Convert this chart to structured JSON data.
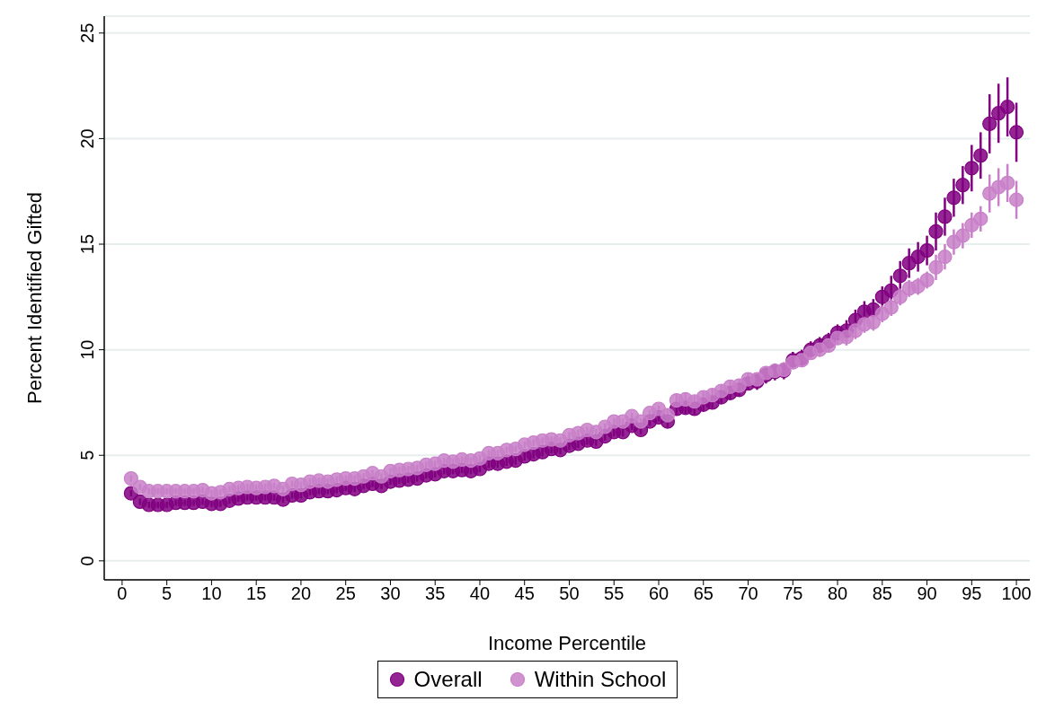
{
  "chart_data": {
    "type": "scatter",
    "xlabel": "Income Percentile",
    "ylabel": "Percent Identified Gifted",
    "x": [
      1,
      2,
      3,
      4,
      5,
      6,
      7,
      8,
      9,
      10,
      11,
      12,
      13,
      14,
      15,
      16,
      17,
      18,
      19,
      20,
      21,
      22,
      23,
      24,
      25,
      26,
      27,
      28,
      29,
      30,
      31,
      32,
      33,
      34,
      35,
      36,
      37,
      38,
      39,
      40,
      41,
      42,
      43,
      44,
      45,
      46,
      47,
      48,
      49,
      50,
      51,
      52,
      53,
      54,
      55,
      56,
      57,
      58,
      59,
      60,
      61,
      62,
      63,
      64,
      65,
      66,
      67,
      68,
      69,
      70,
      71,
      72,
      73,
      74,
      75,
      76,
      77,
      78,
      79,
      80,
      81,
      82,
      83,
      84,
      85,
      86,
      87,
      88,
      89,
      90,
      91,
      92,
      93,
      94,
      95,
      96,
      97,
      98,
      99,
      100
    ],
    "series": [
      {
        "name": "Overall",
        "color": "#800080",
        "values": [
          3.2,
          2.8,
          2.65,
          2.65,
          2.65,
          2.75,
          2.75,
          2.75,
          2.8,
          2.7,
          2.7,
          2.85,
          2.95,
          3.0,
          3.0,
          3.0,
          3.0,
          2.9,
          3.1,
          3.1,
          3.25,
          3.3,
          3.3,
          3.35,
          3.45,
          3.4,
          3.55,
          3.65,
          3.55,
          3.75,
          3.8,
          3.85,
          3.9,
          4.05,
          4.1,
          4.25,
          4.25,
          4.3,
          4.25,
          4.35,
          4.6,
          4.6,
          4.7,
          4.75,
          4.95,
          5.05,
          5.15,
          5.3,
          5.25,
          5.45,
          5.55,
          5.7,
          5.65,
          5.9,
          6.1,
          6.1,
          6.4,
          6.2,
          6.6,
          6.8,
          6.6,
          7.2,
          7.25,
          7.2,
          7.4,
          7.5,
          7.75,
          7.95,
          8.1,
          8.4,
          8.5,
          8.8,
          8.95,
          9.0,
          9.5,
          9.6,
          10.0,
          10.2,
          10.4,
          10.8,
          10.9,
          11.4,
          11.8,
          11.9,
          12.5,
          12.8,
          13.5,
          14.1,
          14.4,
          14.7,
          15.6,
          16.3,
          17.2,
          17.8,
          18.6,
          19.2,
          20.7,
          21.2,
          21.5,
          20.3
        ],
        "errors": [
          0.15,
          0.15,
          0.15,
          0.15,
          0.15,
          0.15,
          0.15,
          0.15,
          0.15,
          0.15,
          0.15,
          0.15,
          0.15,
          0.15,
          0.15,
          0.15,
          0.15,
          0.15,
          0.15,
          0.15,
          0.15,
          0.15,
          0.15,
          0.15,
          0.15,
          0.15,
          0.15,
          0.15,
          0.15,
          0.15,
          0.15,
          0.15,
          0.15,
          0.15,
          0.15,
          0.15,
          0.15,
          0.15,
          0.15,
          0.15,
          0.2,
          0.2,
          0.2,
          0.2,
          0.2,
          0.2,
          0.2,
          0.2,
          0.2,
          0.2,
          0.2,
          0.2,
          0.2,
          0.2,
          0.2,
          0.2,
          0.2,
          0.2,
          0.2,
          0.2,
          0.3,
          0.3,
          0.3,
          0.3,
          0.3,
          0.3,
          0.3,
          0.3,
          0.3,
          0.3,
          0.4,
          0.4,
          0.4,
          0.4,
          0.4,
          0.4,
          0.4,
          0.4,
          0.4,
          0.4,
          0.5,
          0.5,
          0.5,
          0.5,
          0.5,
          0.7,
          0.7,
          0.7,
          0.7,
          0.7,
          0.9,
          0.9,
          0.9,
          0.9,
          1.1,
          1.1,
          1.4,
          1.4,
          1.4,
          1.4
        ]
      },
      {
        "name": "Within School",
        "color": "#c880c8",
        "values": [
          3.9,
          3.5,
          3.3,
          3.3,
          3.3,
          3.3,
          3.3,
          3.3,
          3.35,
          3.2,
          3.25,
          3.4,
          3.45,
          3.5,
          3.45,
          3.5,
          3.55,
          3.4,
          3.65,
          3.6,
          3.75,
          3.8,
          3.75,
          3.85,
          3.9,
          3.9,
          4.0,
          4.15,
          4.0,
          4.25,
          4.3,
          4.35,
          4.4,
          4.55,
          4.6,
          4.75,
          4.7,
          4.8,
          4.75,
          4.85,
          5.1,
          5.1,
          5.25,
          5.3,
          5.5,
          5.6,
          5.7,
          5.75,
          5.7,
          5.95,
          6.05,
          6.2,
          6.1,
          6.35,
          6.6,
          6.6,
          6.85,
          6.6,
          7.0,
          7.2,
          6.9,
          7.6,
          7.65,
          7.55,
          7.75,
          7.85,
          8.05,
          8.25,
          8.3,
          8.6,
          8.6,
          8.9,
          9.0,
          9.05,
          9.4,
          9.5,
          9.85,
          10.0,
          10.2,
          10.55,
          10.6,
          10.9,
          11.2,
          11.3,
          11.7,
          12.0,
          12.5,
          12.9,
          13.0,
          13.3,
          13.9,
          14.4,
          15.1,
          15.4,
          15.9,
          16.2,
          17.4,
          17.7,
          17.9,
          17.1
        ],
        "errors": [
          0.15,
          0.15,
          0.15,
          0.15,
          0.15,
          0.15,
          0.15,
          0.15,
          0.15,
          0.15,
          0.15,
          0.15,
          0.15,
          0.15,
          0.15,
          0.15,
          0.15,
          0.15,
          0.15,
          0.15,
          0.15,
          0.15,
          0.15,
          0.15,
          0.15,
          0.15,
          0.15,
          0.15,
          0.15,
          0.15,
          0.15,
          0.15,
          0.15,
          0.15,
          0.15,
          0.15,
          0.15,
          0.15,
          0.15,
          0.15,
          0.15,
          0.15,
          0.15,
          0.15,
          0.15,
          0.15,
          0.15,
          0.15,
          0.15,
          0.15,
          0.15,
          0.15,
          0.15,
          0.15,
          0.15,
          0.15,
          0.15,
          0.15,
          0.15,
          0.15,
          0.3,
          0.3,
          0.3,
          0.3,
          0.3,
          0.3,
          0.3,
          0.3,
          0.3,
          0.3,
          0.3,
          0.3,
          0.3,
          0.3,
          0.3,
          0.3,
          0.3,
          0.3,
          0.3,
          0.3,
          0.4,
          0.4,
          0.4,
          0.4,
          0.4,
          0.4,
          0.4,
          0.4,
          0.4,
          0.4,
          0.6,
          0.6,
          0.6,
          0.6,
          0.6,
          0.6,
          0.9,
          0.9,
          0.9,
          0.9
        ]
      }
    ],
    "xlim": [
      -2,
      101.5
    ],
    "xticks": [
      0,
      5,
      10,
      15,
      20,
      25,
      30,
      35,
      40,
      45,
      50,
      55,
      60,
      65,
      70,
      75,
      80,
      85,
      90,
      95,
      100
    ],
    "ylim": [
      -0.9,
      25.8
    ],
    "yticks": [
      0,
      5,
      10,
      15,
      20,
      25
    ],
    "grid": "y",
    "legend": "bottom",
    "marker": "circle"
  }
}
